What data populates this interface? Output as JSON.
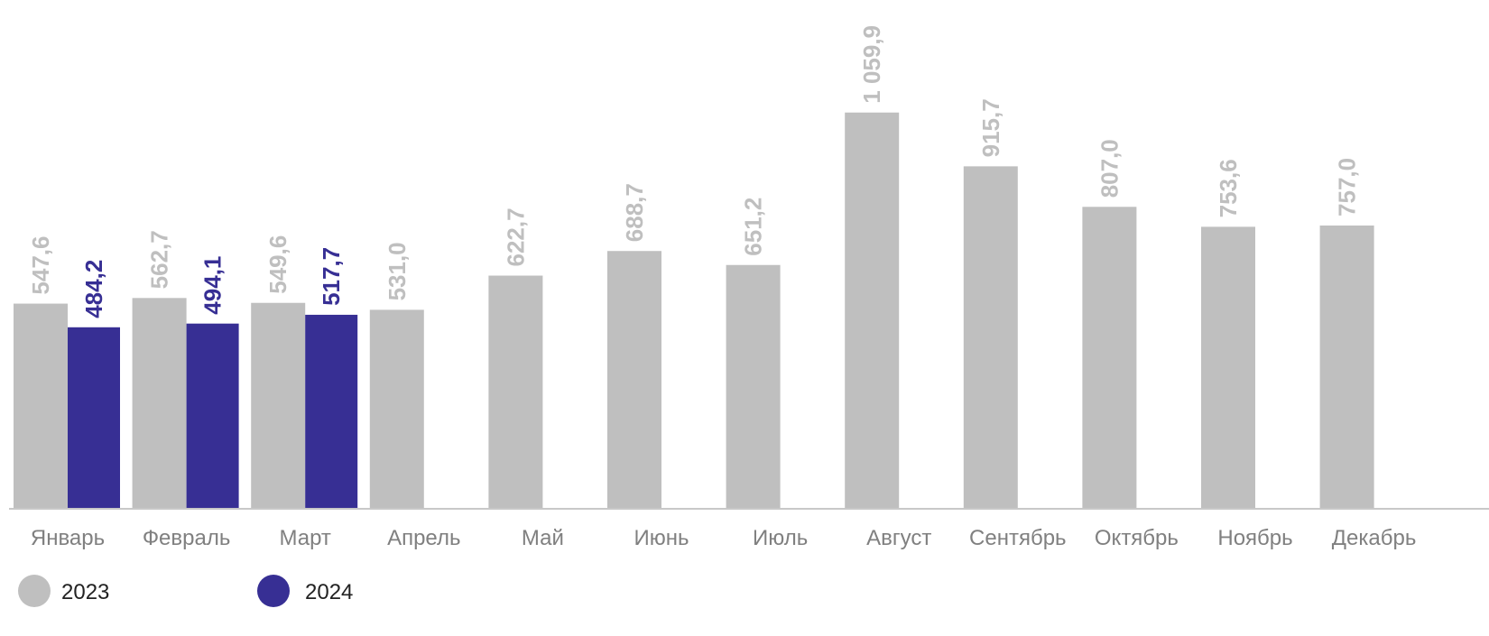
{
  "chart_data": {
    "type": "bar",
    "categories": [
      "Январь",
      "Февраль",
      "Март",
      "Апрель",
      "Май",
      "Июнь",
      "Июль",
      "Август",
      "Сентябрь",
      "Октябрь",
      "Ноябрь",
      "Декабрь"
    ],
    "series": [
      {
        "name": "2023",
        "color": "#bfbfbf",
        "values": [
          547.6,
          562.7,
          549.6,
          531.0,
          622.7,
          688.7,
          651.2,
          1059.9,
          915.7,
          807.0,
          753.6,
          757.0
        ],
        "labels": [
          "547,6",
          "562,7",
          "549,6",
          "531,0",
          "622,7",
          "688,7",
          "651,2",
          "1 059,9",
          "915,7",
          "807,0",
          "753,6",
          "757,0"
        ]
      },
      {
        "name": "2024",
        "color": "#372f94",
        "values": [
          484.2,
          494.1,
          517.7,
          null,
          null,
          null,
          null,
          null,
          null,
          null,
          null,
          null
        ],
        "labels": [
          "484,2",
          "494,1",
          "517,7",
          null,
          null,
          null,
          null,
          null,
          null,
          null,
          null,
          null
        ]
      }
    ],
    "ylim": [
      0,
      1200
    ],
    "grid": false,
    "legend_position": "bottom-left"
  }
}
